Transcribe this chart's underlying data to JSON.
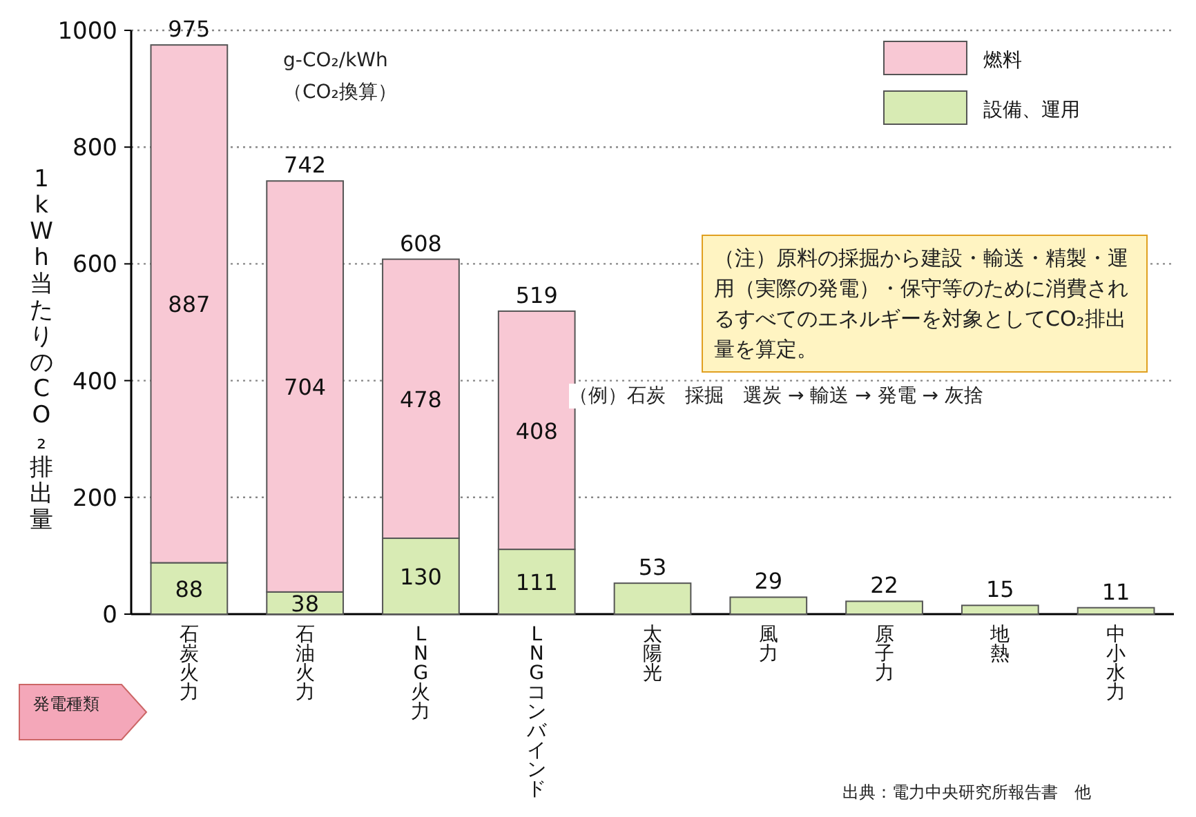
{
  "chart_data": {
    "type": "bar",
    "stacked": true,
    "categories": [
      "石炭火力",
      "石油火力",
      "LNG火力",
      "LNGコンバインド",
      "太陽光",
      "風力",
      "原子力",
      "地熱",
      "中小水力"
    ],
    "ylabel": "1kWh当たりのCO₂排出量",
    "series": [
      {
        "name": "設備、運用",
        "color": "#d8ebb4",
        "values": [
          88,
          38,
          130,
          111,
          53,
          29,
          22,
          15,
          11
        ],
        "value_labels": [
          "88",
          "38",
          "130",
          "111",
          null,
          null,
          null,
          null,
          null
        ]
      },
      {
        "name": "燃料",
        "color": "#f8c8d4",
        "values": [
          887,
          704,
          478,
          408,
          null,
          null,
          null,
          null,
          null
        ],
        "value_labels": [
          "887",
          "704",
          "478",
          "408",
          null,
          null,
          null,
          null,
          null
        ]
      }
    ],
    "totals": [
      "975",
      "742",
      "608",
      "519",
      "53",
      "29",
      "22",
      "15",
      "11"
    ],
    "ylim": [
      0,
      1000
    ],
    "yticks": [
      0,
      200,
      400,
      600,
      800,
      1000
    ],
    "grid": "y",
    "legend": "top right",
    "annotations": [
      "g-CO₂/kWh",
      "（CO₂換算）",
      "（注）原料の採掘から建設・輸送・精製・運用（実際の発電）・保守等のために消費されるすべてのエネルギーを対象としてCO₂排出量を算定。",
      "（例）石炭　採掘　選炭 → 輸送 → 発電 → 灰捨",
      "発電種類",
      "出典：電力中央研究所報告書　他"
    ]
  }
}
